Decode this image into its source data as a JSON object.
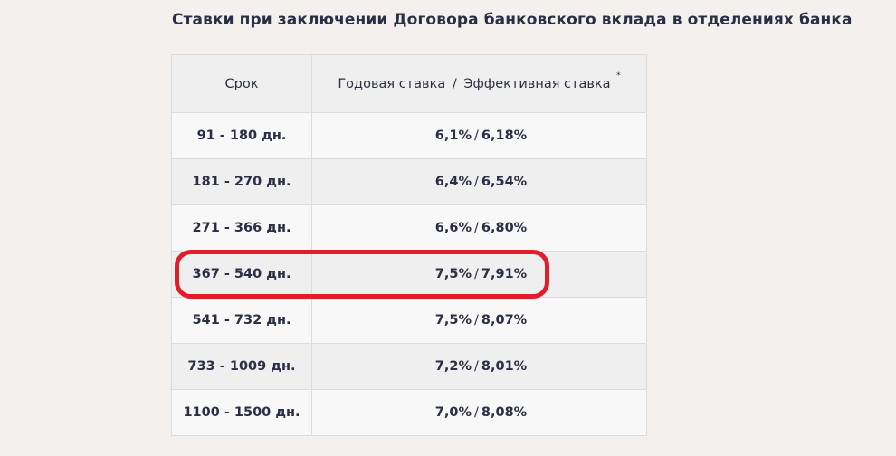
{
  "page": {
    "title": "Ставки при заключении Договора банковского вклада в отделениях банка"
  },
  "table": {
    "headers": {
      "term": "Срок",
      "rate_annual": "Годовая ставка",
      "separator": "/",
      "rate_effective": "Эффективная ставка",
      "footnote_mark": "*"
    },
    "rows": [
      {
        "term": "91 - 180 дн.",
        "annual": "6,1%",
        "effective": "6,18%"
      },
      {
        "term": "181 - 270 дн.",
        "annual": "6,4%",
        "effective": "6,54%"
      },
      {
        "term": "271 - 366 дн.",
        "annual": "6,6%",
        "effective": "6,80%"
      },
      {
        "term": "367 - 540 дн.",
        "annual": "7,5%",
        "effective": "7,91%"
      },
      {
        "term": "541 - 732 дн.",
        "annual": "7,5%",
        "effective": "8,07%"
      },
      {
        "term": "733 - 1009 дн.",
        "annual": "7,2%",
        "effective": "8,01%"
      },
      {
        "term": "1100 - 1500 дн.",
        "annual": "7,0%",
        "effective": "8,08%"
      }
    ],
    "highlighted_row": 4
  },
  "colors": {
    "background": "#f3f0ed",
    "text": "#2b2f45",
    "highlight": "#e01e2b"
  }
}
